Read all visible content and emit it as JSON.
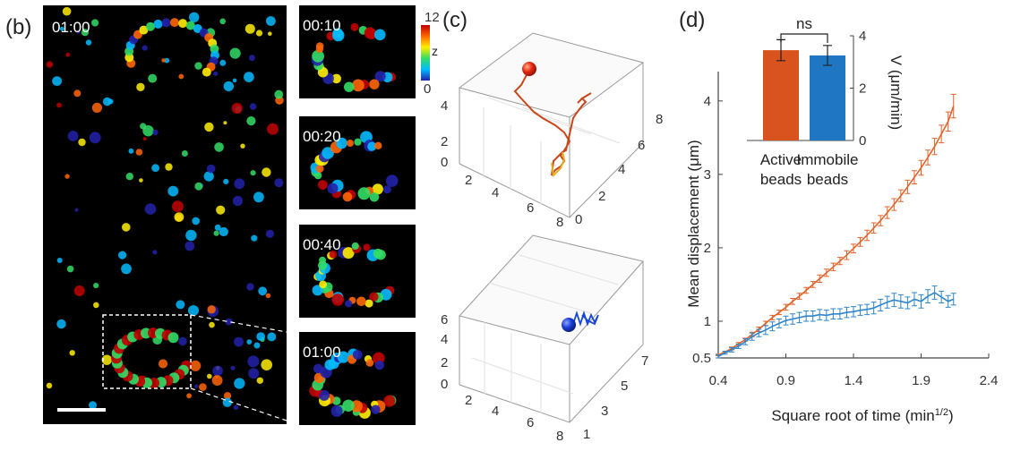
{
  "panels": {
    "b": {
      "label": "(b)",
      "main_time": "01:00",
      "insets": [
        "00:10",
        "00:20",
        "00:40",
        "01:00"
      ],
      "colorbar": {
        "max": "12",
        "min": "0",
        "axis": "z",
        "colors": [
          "#c00000",
          "#ff6600",
          "#ffee00",
          "#33dd66",
          "#00bbff",
          "#2222aa"
        ]
      }
    },
    "c": {
      "label": "(c)",
      "top": {
        "z_ticks": [
          "0",
          "2",
          "4"
        ],
        "x_ticks": [
          "2",
          "4",
          "6",
          "8"
        ],
        "y_ticks": [
          "0",
          "2",
          "4",
          "6",
          "8"
        ],
        "bead_color": "#e62a12"
      },
      "bottom": {
        "z_ticks": [
          "0",
          "2",
          "4",
          "6"
        ],
        "x_ticks": [
          "2",
          "4",
          "6",
          "8"
        ],
        "y_ticks": [
          "1",
          "3",
          "5",
          "7"
        ],
        "bead_color": "#1a3fd6"
      }
    },
    "d": {
      "label": "(d)"
    }
  },
  "chart_data": [
    {
      "type": "line",
      "xlabel": "Square root of time (min1/2)",
      "ylabel": "Mean displacement (μm)",
      "xlim": [
        0.4,
        2.4
      ],
      "ylim": [
        0.5,
        4.4
      ],
      "xticks": [
        "0.4",
        "0.9",
        "1.4",
        "1.9",
        "2.4"
      ],
      "yticks": [
        "0.5",
        "1",
        "2",
        "3",
        "4"
      ],
      "series": [
        {
          "color": "#e0632a",
          "x": [
            0.4,
            0.45,
            0.5,
            0.55,
            0.6,
            0.65,
            0.7,
            0.75,
            0.8,
            0.85,
            0.9,
            0.95,
            1.0,
            1.05,
            1.1,
            1.15,
            1.2,
            1.25,
            1.3,
            1.35,
            1.4,
            1.45,
            1.5,
            1.55,
            1.6,
            1.65,
            1.7,
            1.75,
            1.8,
            1.85,
            1.9,
            1.95,
            2.0,
            2.05,
            2.1,
            2.14
          ],
          "y": [
            0.54,
            0.58,
            0.63,
            0.69,
            0.75,
            0.82,
            0.89,
            0.97,
            1.05,
            1.12,
            1.19,
            1.27,
            1.34,
            1.42,
            1.5,
            1.58,
            1.66,
            1.74,
            1.82,
            1.9,
            1.99,
            2.08,
            2.17,
            2.27,
            2.37,
            2.48,
            2.59,
            2.71,
            2.83,
            2.96,
            3.09,
            3.23,
            3.38,
            3.55,
            3.72,
            3.93
          ],
          "err": [
            0.01,
            0.01,
            0.02,
            0.02,
            0.02,
            0.03,
            0.03,
            0.03,
            0.03,
            0.03,
            0.04,
            0.04,
            0.04,
            0.04,
            0.04,
            0.05,
            0.05,
            0.05,
            0.05,
            0.06,
            0.06,
            0.06,
            0.07,
            0.07,
            0.07,
            0.08,
            0.08,
            0.08,
            0.09,
            0.09,
            0.1,
            0.1,
            0.11,
            0.12,
            0.13,
            0.16
          ]
        },
        {
          "color": "#2f86c8",
          "x": [
            0.4,
            0.45,
            0.5,
            0.55,
            0.6,
            0.65,
            0.7,
            0.75,
            0.8,
            0.85,
            0.9,
            0.95,
            1.0,
            1.05,
            1.1,
            1.15,
            1.2,
            1.25,
            1.3,
            1.35,
            1.4,
            1.45,
            1.5,
            1.55,
            1.6,
            1.65,
            1.7,
            1.75,
            1.8,
            1.85,
            1.9,
            1.95,
            2.0,
            2.05,
            2.1,
            2.14
          ],
          "y": [
            0.52,
            0.57,
            0.61,
            0.66,
            0.72,
            0.79,
            0.84,
            0.88,
            0.93,
            0.97,
            1.01,
            1.03,
            1.05,
            1.07,
            1.07,
            1.09,
            1.08,
            1.1,
            1.1,
            1.12,
            1.13,
            1.15,
            1.16,
            1.18,
            1.22,
            1.26,
            1.29,
            1.27,
            1.25,
            1.3,
            1.27,
            1.34,
            1.39,
            1.33,
            1.27,
            1.3
          ],
          "err": [
            0.02,
            0.02,
            0.03,
            0.03,
            0.04,
            0.05,
            0.05,
            0.06,
            0.06,
            0.06,
            0.06,
            0.07,
            0.07,
            0.07,
            0.07,
            0.07,
            0.07,
            0.07,
            0.07,
            0.07,
            0.07,
            0.07,
            0.07,
            0.08,
            0.08,
            0.08,
            0.09,
            0.09,
            0.08,
            0.09,
            0.09,
            0.09,
            0.09,
            0.08,
            0.08,
            0.08
          ]
        }
      ]
    },
    {
      "type": "bar",
      "categories": [
        "Active beads",
        "Immobile beads"
      ],
      "category_lines": [
        [
          "Active",
          "beads"
        ],
        [
          "Immobile",
          "beads"
        ]
      ],
      "values": [
        3.45,
        3.25
      ],
      "errors": [
        0.4,
        0.38
      ],
      "colors": [
        "#d9531e",
        "#1f77c4"
      ],
      "ylabel": "V (μm/min)",
      "ylim": [
        0,
        4
      ],
      "yticks": [
        "0",
        "2",
        "4"
      ],
      "annotation": "ns"
    }
  ]
}
